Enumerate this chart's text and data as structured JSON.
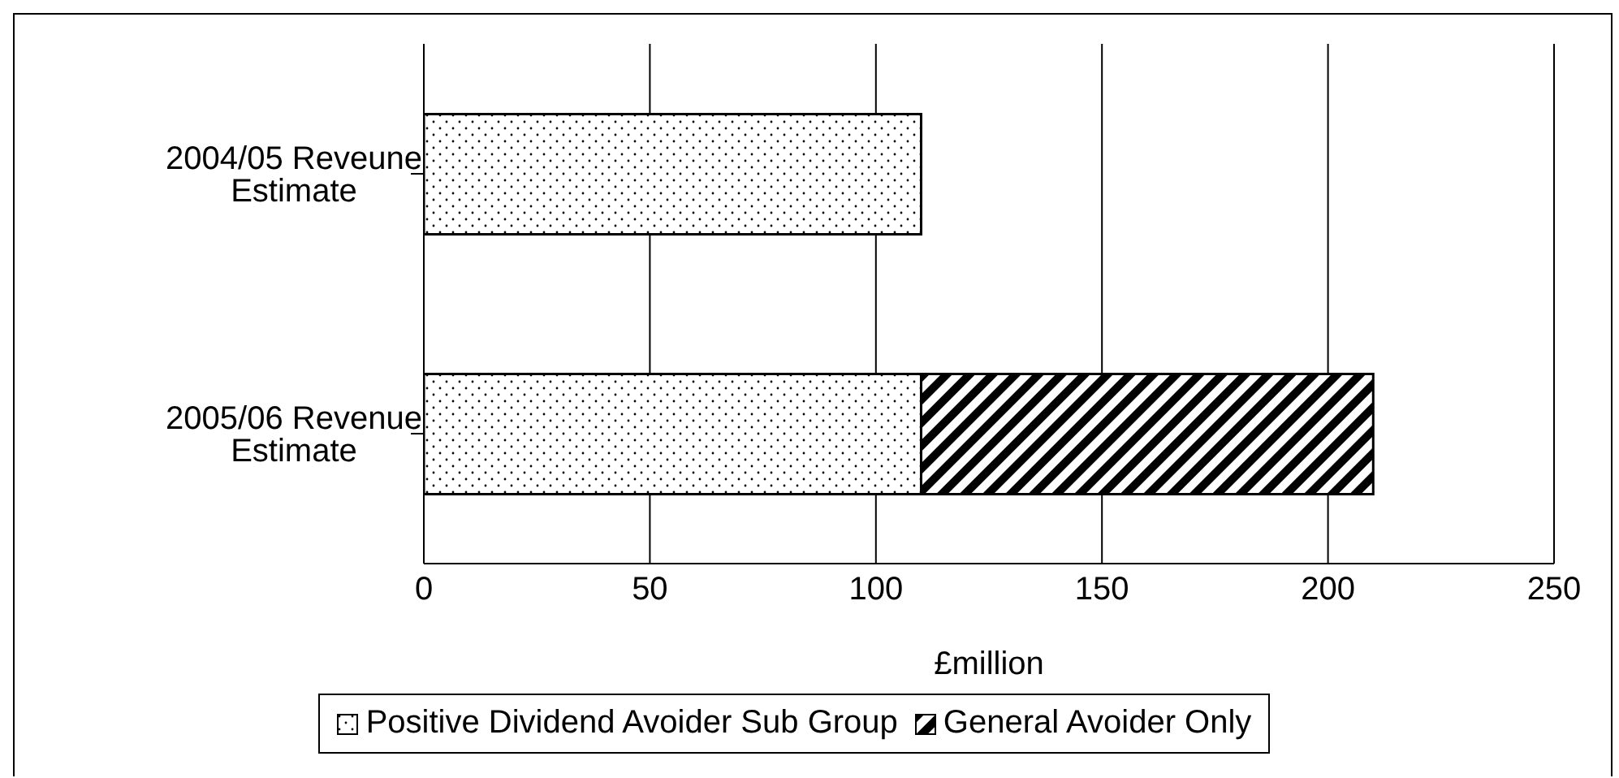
{
  "chart_data": {
    "type": "bar",
    "orientation": "horizontal",
    "stacked": true,
    "categories": [
      "2004/05 Reveune Estimate",
      "2005/06 Revenue Estimate"
    ],
    "series": [
      {
        "name": "Positive Dividend Avoider Sub Group",
        "color": "#000000",
        "values": [
          110,
          110
        ]
      },
      {
        "name": "General Avoider Only",
        "color": "#000000",
        "values": [
          null,
          100
        ]
      }
    ],
    "xlabel": "£million",
    "xlim": [
      0,
      250
    ],
    "xticks": [
      0,
      50,
      100,
      150,
      200,
      250
    ],
    "grid": "x",
    "legend": "bottom"
  }
}
